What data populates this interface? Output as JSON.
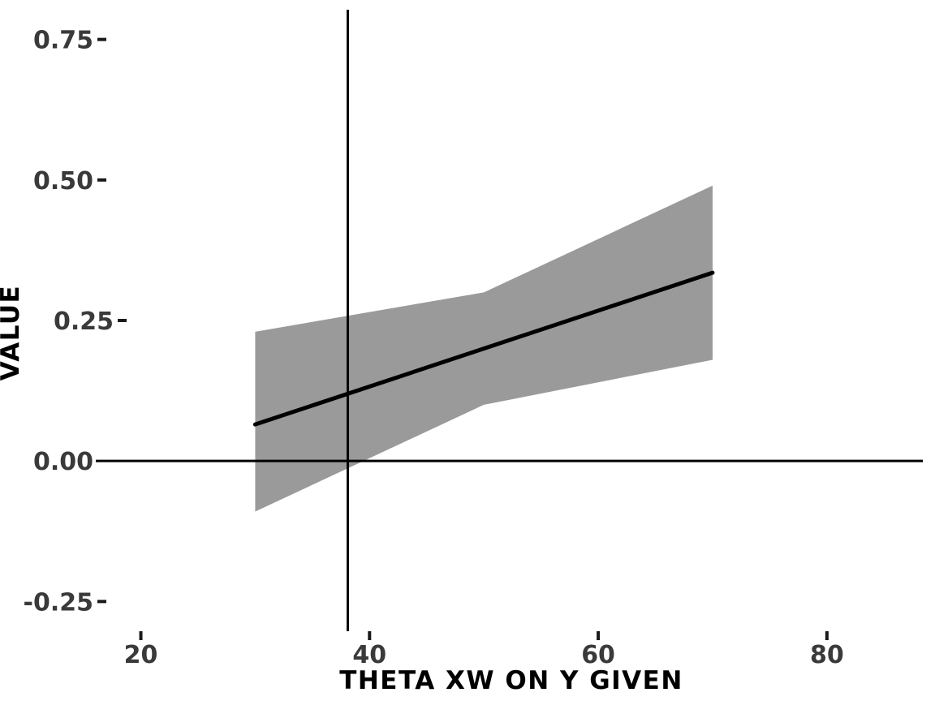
{
  "figure": {
    "background": "#ffffff",
    "title": ""
  },
  "chart_data": {
    "type": "line",
    "title": "",
    "xlabel": "THETA XW ON Y GIVEN",
    "ylabel": "VALUE",
    "x": [
      30,
      50,
      70
    ],
    "series": [
      {
        "name": "estimate-line",
        "values": [
          0.065,
          0.2,
          0.335
        ],
        "color": "#000000",
        "width": 5
      }
    ],
    "band": {
      "name": "confidence-interval",
      "x": [
        30,
        50,
        70
      ],
      "upper": [
        0.23,
        0.3,
        0.49
      ],
      "lower": [
        -0.09,
        0.1,
        0.18
      ],
      "color": "#9a9a9a"
    },
    "reference_lines": [
      {
        "orientation": "vertical",
        "x": 38.1
      },
      {
        "orientation": "horizontal",
        "y": 0
      }
    ],
    "axes": {
      "x": {
        "ticks": [
          20,
          40,
          60,
          80
        ],
        "tick_labels": [
          "20",
          "40",
          "60",
          "80"
        ],
        "range": [
          16.2,
          88.6
        ]
      },
      "y": {
        "ticks": [
          0.75,
          0.5,
          0.25,
          0,
          -0.25
        ],
        "tick_labels": [
          "0.75",
          "0.50",
          "0.25",
          "0.00",
          "-0.25"
        ],
        "range": [
          -0.3,
          0.8
        ]
      }
    },
    "grid": "off",
    "legend": "none",
    "style": {
      "tick_label_color": "#3a3a3a",
      "axis_title_color": "#000000",
      "line_color": "#000000",
      "band_color": "#9a9a9a",
      "reference_line_color": "#000000"
    }
  }
}
